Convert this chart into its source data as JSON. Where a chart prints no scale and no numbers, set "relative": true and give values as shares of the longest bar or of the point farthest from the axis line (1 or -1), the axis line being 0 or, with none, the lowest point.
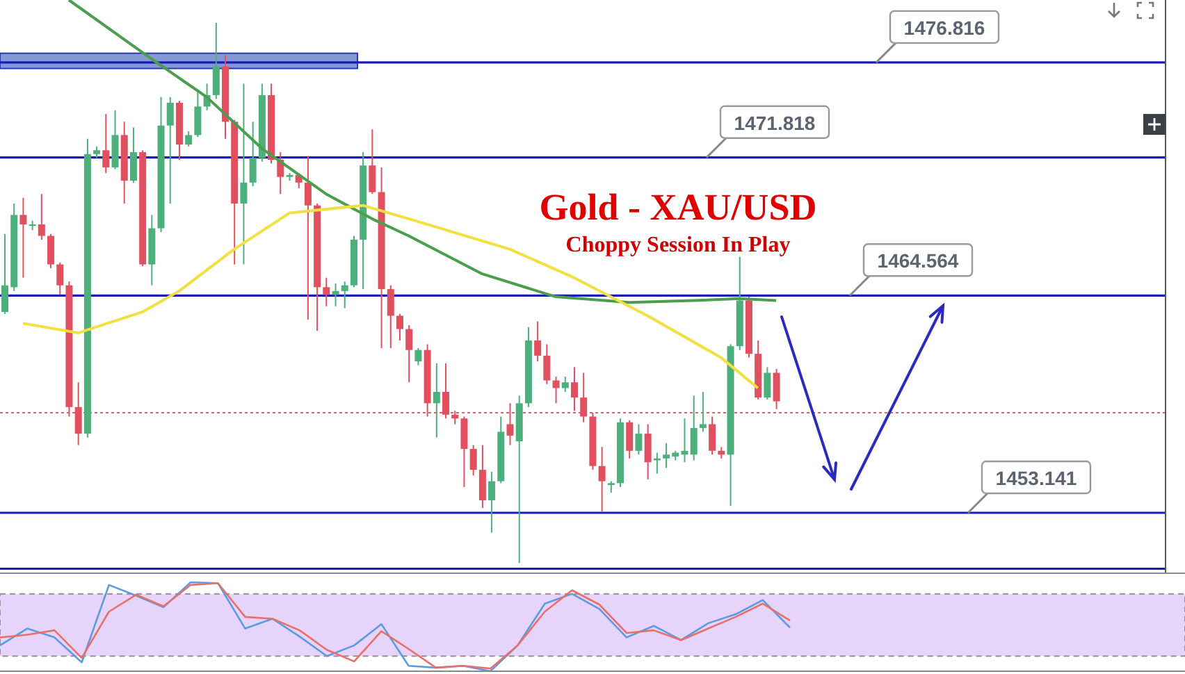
{
  "chart_data": [
    {
      "type": "candlestick",
      "title": "Gold - XAU/USD",
      "subtitle": "Choppy Session In Play",
      "categories": [
        null,
        null,
        null,
        null,
        null,
        null,
        null,
        null,
        null,
        null,
        null,
        null,
        null,
        null,
        null,
        null,
        null,
        null,
        null,
        null,
        null,
        null,
        null,
        null,
        null,
        null,
        null,
        null,
        null,
        null,
        null,
        null,
        null,
        null,
        null,
        null,
        null,
        null,
        null,
        null,
        null,
        null,
        null,
        null,
        null,
        null,
        null,
        null,
        null,
        null,
        null,
        null,
        null,
        null,
        null,
        null,
        null,
        null,
        null,
        null,
        null,
        null,
        null,
        null,
        null,
        null,
        null,
        null,
        null,
        null,
        null,
        null,
        null,
        null,
        null,
        null,
        null,
        null,
        null,
        null,
        null,
        null,
        null,
        null,
        null
      ],
      "ohlc": [
        [
          1463.7,
          1467.8,
          1463.6,
          1465.1
        ],
        [
          1465.0,
          1469.4,
          1464.8,
          1468.8
        ],
        [
          1468.8,
          1469.7,
          1465.5,
          1468.3
        ],
        [
          1468.3,
          1468.5,
          1468.0,
          1468.3
        ],
        [
          1468.3,
          1469.9,
          1467.5,
          1467.7
        ],
        [
          1467.7,
          1467.8,
          1466.0,
          1466.2
        ],
        [
          1466.2,
          1466.3,
          1464.6,
          1465.1
        ],
        [
          1465.1,
          1465.3,
          1458.2,
          1458.7
        ],
        [
          1458.7,
          1460.0,
          1456.7,
          1457.3
        ],
        [
          1457.3,
          1472.8,
          1457.1,
          1472.0
        ],
        [
          1472.0,
          1472.4,
          1471.8,
          1472.2
        ],
        [
          1472.2,
          1474.1,
          1471.0,
          1471.3
        ],
        [
          1471.3,
          1474.3,
          1471.2,
          1473.0
        ],
        [
          1473.0,
          1473.7,
          1469.4,
          1470.6
        ],
        [
          1470.6,
          1473.4,
          1470.5,
          1472.1
        ],
        [
          1472.1,
          1472.2,
          1466.1,
          1466.2
        ],
        [
          1466.2,
          1468.8,
          1465.1,
          1468.1
        ],
        [
          1468.1,
          1475.0,
          1467.9,
          1473.5
        ],
        [
          1473.5,
          1475.0,
          1469.4,
          1474.7
        ],
        [
          1474.7,
          1474.8,
          1471.7,
          1472.5
        ],
        [
          1472.5,
          1473.2,
          1472.4,
          1473.0
        ],
        [
          1473.0,
          1475.4,
          1472.9,
          1474.5
        ],
        [
          1474.5,
          1475.7,
          1474.3,
          1475.1
        ],
        [
          1475.1,
          1478.9,
          1474.9,
          1476.6
        ],
        [
          1476.6,
          1477.2,
          1472.8,
          1473.7
        ],
        [
          1473.7,
          1473.8,
          1466.2,
          1469.4
        ],
        [
          1469.4,
          1475.7,
          1466.2,
          1470.5
        ],
        [
          1470.5,
          1473.7,
          1470.3,
          1471.8
        ],
        [
          1471.8,
          1475.7,
          1471.6,
          1475.1
        ],
        [
          1475.1,
          1475.7,
          1471.5,
          1471.7
        ],
        [
          1471.7,
          1472.1,
          1469.9,
          1470.8
        ],
        [
          1470.8,
          1471.0,
          1470.6,
          1470.9
        ],
        [
          1470.9,
          1471.0,
          1470.2,
          1470.5
        ],
        [
          1470.5,
          1471.9,
          1463.3,
          1469.3
        ],
        [
          1469.3,
          1469.4,
          1462.7,
          1465.0
        ],
        [
          1465.0,
          1465.5,
          1464.0,
          1464.6
        ],
        [
          1464.6,
          1465.2,
          1464.0,
          1464.8
        ],
        [
          1464.8,
          1465.3,
          1463.9,
          1465.1
        ],
        [
          1465.1,
          1467.7,
          1465.0,
          1467.5
        ],
        [
          1467.5,
          1472.1,
          1464.9,
          1471.4
        ],
        [
          1471.4,
          1473.3,
          1469.9,
          1470.0
        ],
        [
          1470.0,
          1471.3,
          1461.8,
          1464.9
        ],
        [
          1464.9,
          1465.1,
          1461.8,
          1463.5
        ],
        [
          1463.5,
          1463.6,
          1462.2,
          1462.8
        ],
        [
          1462.8,
          1463.0,
          1460.0,
          1461.7
        ],
        [
          1461.1,
          1461.8,
          1460.9,
          1461.7
        ],
        [
          1461.7,
          1462.0,
          1458.2,
          1458.9
        ],
        [
          1458.9,
          1461.0,
          1457.1,
          1459.5
        ],
        [
          1459.5,
          1461.0,
          1458.1,
          1458.3
        ],
        [
          1458.3,
          1458.5,
          1457.8,
          1458.1
        ],
        [
          1458.1,
          1458.2,
          1454.5,
          1456.5
        ],
        [
          1456.5,
          1456.7,
          1455.1,
          1455.4
        ],
        [
          1455.4,
          1456.7,
          1453.4,
          1453.8
        ],
        [
          1453.8,
          1455.3,
          1452.1,
          1454.8
        ],
        [
          1454.8,
          1458.2,
          1454.7,
          1457.4
        ],
        [
          1457.8,
          1458.9,
          1456.7,
          1457.2
        ],
        [
          1456.9,
          1459.3,
          1450.5,
          1458.9
        ],
        [
          1458.9,
          1462.9,
          1458.7,
          1462.2
        ],
        [
          1462.2,
          1463.2,
          1461.1,
          1461.4
        ],
        [
          1461.4,
          1462.0,
          1459.9,
          1460.1
        ],
        [
          1460.1,
          1460.3,
          1458.9,
          1459.7
        ],
        [
          1459.7,
          1460.3,
          1459.5,
          1460.0
        ],
        [
          1460.0,
          1460.8,
          1458.5,
          1459.2
        ],
        [
          1459.2,
          1460.5,
          1457.9,
          1458.2
        ],
        [
          1458.2,
          1458.4,
          1455.4,
          1455.6
        ],
        [
          1455.6,
          1456.6,
          1453.2,
          1454.8
        ],
        [
          1454.6,
          1454.8,
          1454.2,
          1454.7
        ],
        [
          1454.7,
          1458.1,
          1454.5,
          1457.9
        ],
        [
          1457.9,
          1458.0,
          1456.0,
          1456.4
        ],
        [
          1456.4,
          1457.8,
          1456.2,
          1457.3
        ],
        [
          1457.3,
          1457.8,
          1454.9,
          1455.8
        ],
        [
          1455.9,
          1456.3,
          1455.2,
          1456.0
        ],
        [
          1456.0,
          1456.8,
          1455.5,
          1456.2
        ],
        [
          1456.1,
          1456.4,
          1455.9,
          1456.3
        ],
        [
          1456.2,
          1458.1,
          1455.8,
          1456.4
        ],
        [
          1456.2,
          1459.3,
          1455.9,
          1457.6
        ],
        [
          1457.6,
          1459.5,
          1457.4,
          1457.8
        ],
        [
          1457.8,
          1458.2,
          1456.2,
          1456.4
        ],
        [
          1456.4,
          1456.6,
          1456.0,
          1456.2
        ],
        [
          1456.2,
          1462.0,
          1453.5,
          1461.9
        ],
        [
          1461.9,
          1466.6,
          1461.7,
          1464.3
        ],
        [
          1464.3,
          1464.5,
          1461.3,
          1461.5
        ],
        [
          1461.5,
          1462.2,
          1459.1,
          1459.2
        ],
        [
          1459.2,
          1460.8,
          1459.1,
          1460.5
        ],
        [
          1460.5,
          1460.7,
          1458.6,
          1459.0
        ]
      ],
      "colors": [
        "#4caf7c",
        "#4caf7c",
        "#e0505e",
        "#4caf7c",
        "#e0505e",
        "#e0505e",
        "#e0505e",
        "#e0505e",
        "#e0505e",
        "#4caf7c",
        "#4caf7c",
        "#e0505e",
        "#4caf7c",
        "#e0505e",
        "#4caf7c",
        "#e0505e",
        "#4caf7c",
        "#4caf7c",
        "#4caf7c",
        "#e0505e",
        "#4caf7c",
        "#4caf7c",
        "#4caf7c",
        "#4caf7c",
        "#e0505e",
        "#e0505e",
        "#4caf7c",
        "#4caf7c",
        "#4caf7c",
        "#e0505e",
        "#e0505e",
        "#4caf7c",
        "#e0505e",
        "#e0505e",
        "#e0505e",
        "#e0505e",
        "#4caf7c",
        "#4caf7c",
        "#4caf7c",
        "#4caf7c",
        "#e0505e",
        "#e0505e",
        "#e0505e",
        "#e0505e",
        "#e0505e",
        "#4caf7c",
        "#e0505e",
        "#4caf7c",
        "#e0505e",
        "#e0505e",
        "#e0505e",
        "#e0505e",
        "#e0505e",
        "#4caf7c",
        "#4caf7c",
        "#e0505e",
        "#4caf7c",
        "#4caf7c",
        "#e0505e",
        "#e0505e",
        "#e0505e",
        "#4caf7c",
        "#e0505e",
        "#e0505e",
        "#e0505e",
        "#e0505e",
        "#4caf7c",
        "#4caf7c",
        "#e0505e",
        "#4caf7c",
        "#e0505e",
        "#4caf7c",
        "#4caf7c",
        "#4caf7c",
        "#4caf7c",
        "#4caf7c",
        "#4caf7c",
        "#e0505e",
        "#e0505e",
        "#4caf7c",
        "#4caf7c",
        "#e0505e",
        "#e0505e",
        "#4caf7c",
        "#e0505e"
      ],
      "series": [
        {
          "type": "line",
          "color": "#4a9e4e",
          "values": [
            null,
            null,
            null,
            null,
            null,
            null,
            null,
            1480.1,
            null,
            null,
            null,
            null,
            null,
            null,
            null,
            null,
            1477.0,
            null,
            null,
            null,
            null,
            null,
            1475.0,
            null,
            null,
            null,
            null,
            null,
            1472.3,
            null,
            null,
            null,
            null,
            null,
            null,
            1469.9,
            null,
            null,
            null,
            null,
            1468.6,
            null,
            null,
            null,
            1467.7,
            null,
            null,
            null,
            null,
            null,
            null,
            null,
            1465.7,
            null,
            null,
            null,
            null,
            null,
            null,
            null,
            1464.5,
            null,
            null,
            null,
            null,
            null,
            null,
            null,
            1464.2,
            null,
            null,
            null,
            null,
            null,
            null,
            1464.3,
            null,
            null,
            null,
            null,
            1464.4,
            null,
            null,
            null,
            1464.3
          ]
        },
        {
          "type": "line",
          "color": "#f0e040",
          "values": [
            null,
            null,
            1463.1,
            null,
            null,
            null,
            null,
            null,
            1462.6,
            null,
            null,
            null,
            null,
            null,
            null,
            1463.7,
            null,
            null,
            null,
            1464.8,
            null,
            null,
            null,
            null,
            null,
            1467.0,
            null,
            null,
            null,
            null,
            null,
            1468.9,
            null,
            null,
            null,
            null,
            null,
            null,
            null,
            1469.3,
            null,
            null,
            null,
            null,
            1468.6,
            null,
            null,
            null,
            null,
            null,
            null,
            null,
            null,
            null,
            null,
            1467.0,
            null,
            null,
            null,
            null,
            null,
            null,
            1465.5,
            null,
            null,
            null,
            null,
            null,
            null,
            null,
            1463.5,
            null,
            null,
            null,
            null,
            null,
            null,
            null,
            1461.3,
            null,
            null,
            null,
            1459.7,
            null,
            null
          ]
        }
      ],
      "ylim": [
        1450.0,
        1480.1
      ],
      "tick_labels": false,
      "ref_lines": [
        {
          "axis": "y",
          "value": 1476.816,
          "label": "1476.816",
          "color": "#1c1cb4"
        },
        {
          "axis": "y",
          "value": 1471.818,
          "label": "1471.818",
          "color": "#1c1cb4"
        },
        {
          "axis": "y",
          "value": 1464.564,
          "label": "1464.564",
          "color": "#1c1cb4"
        },
        {
          "axis": "y",
          "value": 1453.141,
          "label": "1453.141",
          "color": "#1c1cb4"
        },
        {
          "axis": "y",
          "value": 1450.2,
          "color": "#1c1cb4"
        },
        {
          "axis": "y",
          "value": 1458.4,
          "color": "#e06070",
          "line_style": "dotted"
        }
      ],
      "bands": [
        {
          "axis": "y",
          "from": 1476.5,
          "to": 1477.3,
          "color": "#6f86cf"
        }
      ]
    },
    {
      "type": "line",
      "relative": true,
      "categories": [
        null,
        null,
        null,
        null,
        null,
        null,
        null,
        null,
        null,
        null,
        null,
        null,
        null,
        null,
        null,
        null,
        null,
        null,
        null,
        null,
        null,
        null,
        null,
        null,
        null,
        null,
        null,
        null,
        null,
        null
      ],
      "series": [
        {
          "color": "#5b9be0",
          "values": [
            0.29,
            0.48,
            0.38,
            0.1,
            0.97,
            0.85,
            0.72,
            1.0,
            0.99,
            0.48,
            0.59,
            0.39,
            0.17,
            0.29,
            0.53,
            0.06,
            0.04,
            0.06,
            0.0,
            0.29,
            0.76,
            0.87,
            0.7,
            0.38,
            0.51,
            0.35,
            0.54,
            0.64,
            0.8,
            0.49
          ]
        },
        {
          "color": "#e8706a",
          "values": [
            0.38,
            0.41,
            0.46,
            0.15,
            0.67,
            0.86,
            0.73,
            0.97,
            0.99,
            0.61,
            0.59,
            0.46,
            0.24,
            0.11,
            0.45,
            0.25,
            0.04,
            0.06,
            0.03,
            0.29,
            0.67,
            0.91,
            0.75,
            0.43,
            0.46,
            0.35,
            0.48,
            0.61,
            0.76,
            0.57
          ]
        }
      ],
      "bands": [
        {
          "axis": "y",
          "from": 0.17,
          "to": 0.87,
          "color": "#e3ccfa"
        }
      ]
    }
  ]
}
